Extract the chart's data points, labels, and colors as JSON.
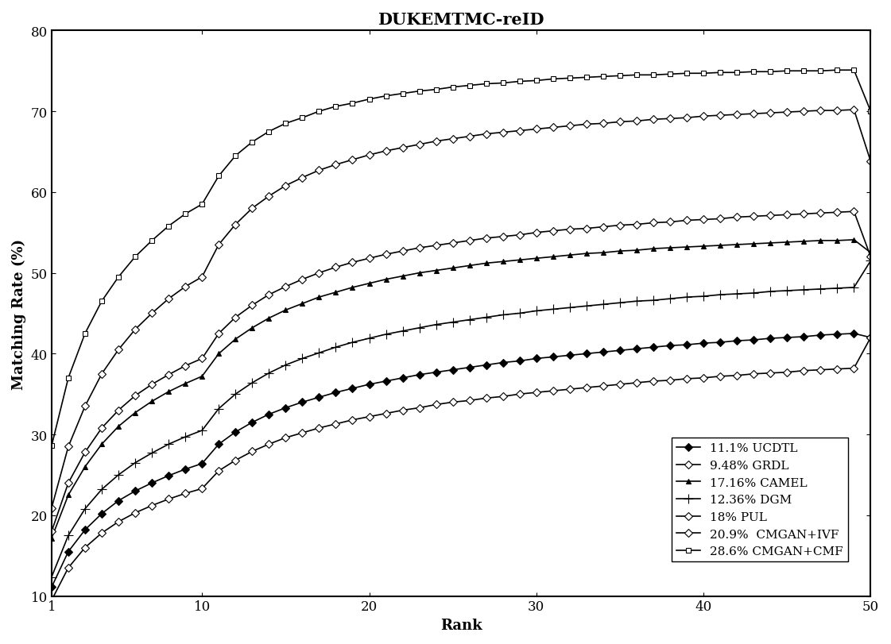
{
  "title": "DUKEMTMC-reID",
  "xlabel": "Rank",
  "ylabel": "Matching Rate (%)",
  "xlim": [
    1,
    50
  ],
  "ylim": [
    10,
    80
  ],
  "xticks": [
    1,
    10,
    20,
    30,
    40,
    50
  ],
  "yticks": [
    10,
    20,
    30,
    40,
    50,
    60,
    70,
    80
  ],
  "series": [
    {
      "label": "11.1% UCDTL",
      "color": "#000000",
      "marker": "D",
      "markersize": 5,
      "linewidth": 1.2,
      "markerfacecolor": "#000000",
      "values": [
        11.1,
        15.5,
        18.2,
        20.2,
        21.8,
        23.0,
        24.0,
        24.9,
        25.7,
        26.4,
        28.8,
        30.3,
        31.5,
        32.5,
        33.3,
        34.0,
        34.6,
        35.2,
        35.7,
        36.2,
        36.6,
        37.0,
        37.4,
        37.7,
        38.0,
        38.3,
        38.6,
        38.9,
        39.1,
        39.4,
        39.6,
        39.8,
        40.0,
        40.2,
        40.4,
        40.6,
        40.8,
        41.0,
        41.1,
        41.3,
        41.4,
        41.6,
        41.7,
        41.9,
        42.0,
        42.1,
        42.3,
        42.4,
        42.5,
        42.0
      ]
    },
    {
      "label": "9.48% GRDL",
      "color": "#000000",
      "marker": "D",
      "markersize": 5,
      "linewidth": 1.2,
      "markerfacecolor": "#ffffff",
      "values": [
        9.48,
        13.5,
        16.0,
        17.8,
        19.2,
        20.3,
        21.2,
        22.0,
        22.7,
        23.3,
        25.5,
        26.8,
        27.9,
        28.8,
        29.6,
        30.2,
        30.8,
        31.3,
        31.8,
        32.2,
        32.6,
        33.0,
        33.3,
        33.7,
        34.0,
        34.2,
        34.5,
        34.7,
        35.0,
        35.2,
        35.4,
        35.6,
        35.8,
        36.0,
        36.2,
        36.4,
        36.6,
        36.7,
        36.9,
        37.0,
        37.2,
        37.3,
        37.5,
        37.6,
        37.7,
        37.9,
        38.0,
        38.1,
        38.2,
        42.0
      ]
    },
    {
      "label": "17.16% CAMEL",
      "color": "#000000",
      "marker": "^",
      "markersize": 5,
      "linewidth": 1.2,
      "markerfacecolor": "#000000",
      "values": [
        17.16,
        22.5,
        26.0,
        28.8,
        31.0,
        32.7,
        34.1,
        35.3,
        36.3,
        37.2,
        40.0,
        41.8,
        43.2,
        44.4,
        45.4,
        46.2,
        47.0,
        47.6,
        48.2,
        48.7,
        49.2,
        49.6,
        50.0,
        50.3,
        50.6,
        50.9,
        51.2,
        51.4,
        51.6,
        51.8,
        52.0,
        52.2,
        52.4,
        52.5,
        52.7,
        52.8,
        53.0,
        53.1,
        53.2,
        53.3,
        53.4,
        53.5,
        53.6,
        53.7,
        53.8,
        53.9,
        54.0,
        54.0,
        54.1,
        52.5
      ]
    },
    {
      "label": "12.36% DGM",
      "color": "#000000",
      "marker": "+",
      "markersize": 7,
      "linewidth": 1.2,
      "markerfacecolor": "#000000",
      "values": [
        12.36,
        17.5,
        20.8,
        23.2,
        25.0,
        26.5,
        27.7,
        28.8,
        29.7,
        30.5,
        33.2,
        35.0,
        36.4,
        37.6,
        38.6,
        39.4,
        40.1,
        40.8,
        41.4,
        41.9,
        42.4,
        42.8,
        43.2,
        43.6,
        43.9,
        44.2,
        44.5,
        44.8,
        45.0,
        45.3,
        45.5,
        45.7,
        45.9,
        46.1,
        46.3,
        46.5,
        46.6,
        46.8,
        47.0,
        47.1,
        47.3,
        47.4,
        47.5,
        47.7,
        47.8,
        47.9,
        48.0,
        48.1,
        48.2,
        51.5
      ]
    },
    {
      "label": "18% PUL",
      "color": "#000000",
      "marker": "D",
      "markersize": 5,
      "linewidth": 1.2,
      "markerfacecolor": "#ffffff",
      "values": [
        18.0,
        24.0,
        27.8,
        30.8,
        33.0,
        34.8,
        36.2,
        37.4,
        38.5,
        39.4,
        42.5,
        44.5,
        46.0,
        47.3,
        48.3,
        49.2,
        50.0,
        50.7,
        51.3,
        51.8,
        52.3,
        52.7,
        53.1,
        53.4,
        53.7,
        54.0,
        54.3,
        54.5,
        54.7,
        55.0,
        55.2,
        55.4,
        55.5,
        55.7,
        55.9,
        56.0,
        56.2,
        56.3,
        56.5,
        56.6,
        56.7,
        56.9,
        57.0,
        57.1,
        57.2,
        57.3,
        57.4,
        57.5,
        57.6,
        52.0
      ]
    },
    {
      "label": "20.9%  CMGAN+IVF",
      "color": "#000000",
      "marker": "D",
      "markersize": 5,
      "linewidth": 1.2,
      "markerfacecolor": "#ffffff",
      "values": [
        20.9,
        28.5,
        33.5,
        37.5,
        40.5,
        43.0,
        45.0,
        46.8,
        48.3,
        49.5,
        53.5,
        56.0,
        58.0,
        59.5,
        60.8,
        61.8,
        62.7,
        63.4,
        64.0,
        64.6,
        65.1,
        65.5,
        65.9,
        66.3,
        66.6,
        66.9,
        67.2,
        67.4,
        67.6,
        67.8,
        68.0,
        68.2,
        68.4,
        68.5,
        68.7,
        68.8,
        69.0,
        69.1,
        69.2,
        69.4,
        69.5,
        69.6,
        69.7,
        69.8,
        69.9,
        70.0,
        70.1,
        70.1,
        70.2,
        63.8
      ]
    },
    {
      "label": "28.6% CMGAN+CMF",
      "color": "#000000",
      "marker": "s",
      "markersize": 5,
      "linewidth": 1.2,
      "markerfacecolor": "#ffffff",
      "values": [
        28.6,
        37.0,
        42.5,
        46.5,
        49.5,
        52.0,
        54.0,
        55.8,
        57.3,
        58.5,
        62.0,
        64.5,
        66.2,
        67.5,
        68.5,
        69.2,
        70.0,
        70.6,
        71.0,
        71.5,
        71.9,
        72.2,
        72.5,
        72.7,
        73.0,
        73.2,
        73.4,
        73.5,
        73.7,
        73.8,
        74.0,
        74.1,
        74.2,
        74.3,
        74.4,
        74.5,
        74.5,
        74.6,
        74.7,
        74.7,
        74.8,
        74.8,
        74.9,
        74.9,
        75.0,
        75.0,
        75.0,
        75.1,
        75.1,
        70.0
      ]
    }
  ],
  "legend_loc": "lower right",
  "background_color": "#ffffff",
  "title_fontsize": 15,
  "label_fontsize": 13,
  "tick_fontsize": 12,
  "legend_fontsize": 11
}
